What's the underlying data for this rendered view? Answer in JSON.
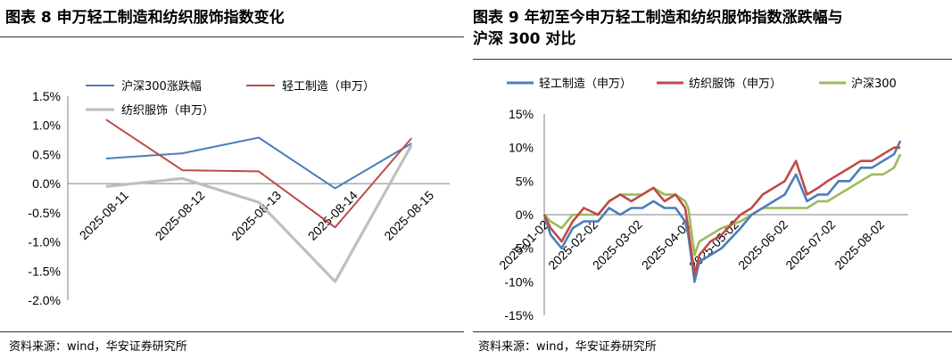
{
  "left": {
    "title": "图表 8 申万轻工制造和纺织服饰指数变化",
    "source": "资料来源：wind，华安证券研究所",
    "chart_data": {
      "type": "line",
      "categories": [
        "2025-08-11",
        "2025-08-12",
        "2025-08-13",
        "2025-08-14",
        "2025-08-15"
      ],
      "y_ticks": [
        "1.5%",
        "1.0%",
        "0.5%",
        "0.0%",
        "-0.5%",
        "-1.0%",
        "-1.5%",
        "-2.0%"
      ],
      "ylim": [
        -2.0,
        1.5
      ],
      "legend_position": "top",
      "series": [
        {
          "name": "沪深300涨跌幅",
          "color": "#4a7ebb",
          "values": [
            0.43,
            0.52,
            0.79,
            -0.08,
            0.69
          ]
        },
        {
          "name": "轻工制造（申万）",
          "color": "#be4b48",
          "values": [
            1.1,
            0.23,
            0.21,
            -0.75,
            0.78
          ]
        },
        {
          "name": "纺织服饰（申万）",
          "color": "#bfbfbf",
          "values": [
            -0.05,
            0.09,
            -0.32,
            -1.68,
            0.66
          ]
        }
      ]
    }
  },
  "right": {
    "title_line1": "图表 9 年初至今申万轻工制造和纺织服饰指数涨跌幅与",
    "title_line2": "沪深 300 对比",
    "source": "资料来源：wind，华安证券研究所",
    "chart_data": {
      "type": "line",
      "categories": [
        "2025-01-02",
        "2025-02-02",
        "2025-03-02",
        "2025-04-02",
        "2025-05-02",
        "2025-06-02",
        "2025-07-02",
        "2025-08-02"
      ],
      "y_ticks": [
        "15%",
        "10%",
        "5%",
        "0%",
        "-5%",
        "-10%",
        "-15%"
      ],
      "ylim": [
        -15,
        15
      ],
      "legend_position": "top",
      "series": [
        {
          "name": "轻工制造（申万）",
          "color": "#4a7ebb",
          "points": [
            [
              "2025-01-02",
              0
            ],
            [
              "2025-01-06",
              -3
            ],
            [
              "2025-01-13",
              -5
            ],
            [
              "2025-01-20",
              -2
            ],
            [
              "2025-01-27",
              -1
            ],
            [
              "2025-02-05",
              -1
            ],
            [
              "2025-02-12",
              1
            ],
            [
              "2025-02-19",
              0
            ],
            [
              "2025-02-26",
              1
            ],
            [
              "2025-03-05",
              1
            ],
            [
              "2025-03-12",
              2
            ],
            [
              "2025-03-19",
              1
            ],
            [
              "2025-03-26",
              1
            ],
            [
              "2025-04-01",
              -1
            ],
            [
              "2025-04-03",
              -3
            ],
            [
              "2025-04-07",
              -10
            ],
            [
              "2025-04-10",
              -7
            ],
            [
              "2025-04-17",
              -6
            ],
            [
              "2025-04-24",
              -5
            ],
            [
              "2025-05-06",
              -2
            ],
            [
              "2025-05-13",
              0
            ],
            [
              "2025-05-20",
              1
            ],
            [
              "2025-05-27",
              2
            ],
            [
              "2025-06-03",
              3
            ],
            [
              "2025-06-10",
              6
            ],
            [
              "2025-06-17",
              2
            ],
            [
              "2025-06-24",
              3
            ],
            [
              "2025-06-30",
              3
            ],
            [
              "2025-07-07",
              5
            ],
            [
              "2025-07-14",
              5
            ],
            [
              "2025-07-21",
              7
            ],
            [
              "2025-07-28",
              7
            ],
            [
              "2025-08-04",
              8
            ],
            [
              "2025-08-11",
              9
            ],
            [
              "2025-08-15",
              11
            ]
          ]
        },
        {
          "name": "纺织服饰（申万）",
          "color": "#be4b48",
          "points": [
            [
              "2025-01-02",
              0
            ],
            [
              "2025-01-06",
              -2
            ],
            [
              "2025-01-13",
              -4
            ],
            [
              "2025-01-20",
              -1
            ],
            [
              "2025-01-27",
              1
            ],
            [
              "2025-02-05",
              0
            ],
            [
              "2025-02-12",
              2
            ],
            [
              "2025-02-19",
              3
            ],
            [
              "2025-02-26",
              2
            ],
            [
              "2025-03-05",
              3
            ],
            [
              "2025-03-12",
              4
            ],
            [
              "2025-03-19",
              2
            ],
            [
              "2025-03-26",
              3
            ],
            [
              "2025-04-01",
              1
            ],
            [
              "2025-04-03",
              -2
            ],
            [
              "2025-04-07",
              -9
            ],
            [
              "2025-04-10",
              -6
            ],
            [
              "2025-04-17",
              -4
            ],
            [
              "2025-04-24",
              -3
            ],
            [
              "2025-05-06",
              0
            ],
            [
              "2025-05-13",
              1
            ],
            [
              "2025-05-20",
              3
            ],
            [
              "2025-05-27",
              4
            ],
            [
              "2025-06-03",
              5
            ],
            [
              "2025-06-10",
              8
            ],
            [
              "2025-06-17",
              3
            ],
            [
              "2025-06-24",
              4
            ],
            [
              "2025-06-30",
              5
            ],
            [
              "2025-07-07",
              6
            ],
            [
              "2025-07-14",
              7
            ],
            [
              "2025-07-21",
              8
            ],
            [
              "2025-07-28",
              8
            ],
            [
              "2025-08-04",
              9
            ],
            [
              "2025-08-11",
              10
            ],
            [
              "2025-08-15",
              10
            ]
          ]
        },
        {
          "name": "沪深300",
          "color": "#9bbb59",
          "points": [
            [
              "2025-01-02",
              0
            ],
            [
              "2025-01-06",
              -1
            ],
            [
              "2025-01-13",
              -2
            ],
            [
              "2025-01-20",
              0
            ],
            [
              "2025-01-27",
              0
            ],
            [
              "2025-02-05",
              0
            ],
            [
              "2025-02-12",
              2
            ],
            [
              "2025-02-19",
              3
            ],
            [
              "2025-02-26",
              3
            ],
            [
              "2025-03-05",
              3
            ],
            [
              "2025-03-12",
              4
            ],
            [
              "2025-03-19",
              3
            ],
            [
              "2025-03-26",
              3
            ],
            [
              "2025-04-01",
              2
            ],
            [
              "2025-04-03",
              1
            ],
            [
              "2025-04-07",
              -6
            ],
            [
              "2025-04-10",
              -4
            ],
            [
              "2025-04-17",
              -3
            ],
            [
              "2025-04-24",
              -2
            ],
            [
              "2025-05-06",
              -1
            ],
            [
              "2025-05-13",
              0
            ],
            [
              "2025-05-20",
              1
            ],
            [
              "2025-05-27",
              1
            ],
            [
              "2025-06-03",
              1
            ],
            [
              "2025-06-10",
              1
            ],
            [
              "2025-06-17",
              1
            ],
            [
              "2025-06-24",
              2
            ],
            [
              "2025-06-30",
              2
            ],
            [
              "2025-07-07",
              3
            ],
            [
              "2025-07-14",
              4
            ],
            [
              "2025-07-21",
              5
            ],
            [
              "2025-07-28",
              6
            ],
            [
              "2025-08-04",
              6
            ],
            [
              "2025-08-11",
              7
            ],
            [
              "2025-08-15",
              9
            ]
          ]
        }
      ]
    }
  }
}
